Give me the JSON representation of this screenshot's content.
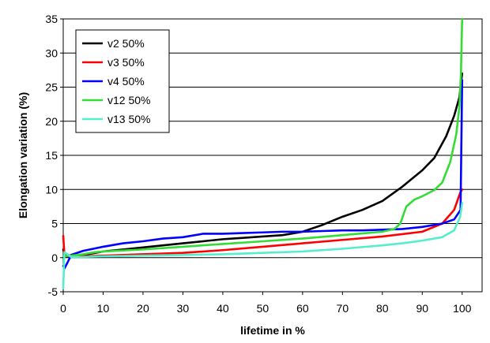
{
  "chart_data": {
    "type": "line",
    "xlabel": "lifetime in %",
    "ylabel": "Elongation variation  (%)",
    "xlim": [
      0,
      105
    ],
    "ylim": [
      -5,
      35
    ],
    "xticks": [
      0,
      10,
      20,
      30,
      40,
      50,
      60,
      70,
      80,
      90,
      100
    ],
    "yticks": [
      -5,
      0,
      5,
      10,
      15,
      20,
      25,
      30,
      35
    ],
    "grid": "horizontal",
    "legend_position": "top-left",
    "series": [
      {
        "name": "v2 50%",
        "color": "#000000",
        "points": [
          [
            0,
            1.2
          ],
          [
            0.4,
            0.2
          ],
          [
            2,
            0.2
          ],
          [
            5,
            0.4
          ],
          [
            10,
            0.9
          ],
          [
            15,
            1.2
          ],
          [
            20,
            1.5
          ],
          [
            25,
            1.8
          ],
          [
            30,
            2.1
          ],
          [
            35,
            2.4
          ],
          [
            40,
            2.7
          ],
          [
            45,
            2.9
          ],
          [
            50,
            3.1
          ],
          [
            55,
            3.3
          ],
          [
            60,
            3.8
          ],
          [
            65,
            4.8
          ],
          [
            70,
            6.0
          ],
          [
            75,
            7.0
          ],
          [
            80,
            8.3
          ],
          [
            85,
            10.4
          ],
          [
            90,
            12.8
          ],
          [
            93,
            14.6
          ],
          [
            96,
            17.8
          ],
          [
            98,
            20.8
          ],
          [
            99.3,
            23.5
          ],
          [
            99.8,
            26
          ],
          [
            100,
            27
          ]
        ]
      },
      {
        "name": "v3 50%",
        "color": "#ff0000",
        "points": [
          [
            0,
            3.2
          ],
          [
            0.3,
            0.5
          ],
          [
            2,
            0.3
          ],
          [
            5,
            0.2
          ],
          [
            10,
            0.3
          ],
          [
            20,
            0.5
          ],
          [
            30,
            0.7
          ],
          [
            40,
            1.1
          ],
          [
            50,
            1.6
          ],
          [
            60,
            2.1
          ],
          [
            70,
            2.6
          ],
          [
            80,
            3.1
          ],
          [
            90,
            3.8
          ],
          [
            95,
            5.0
          ],
          [
            98,
            7.0
          ],
          [
            99.5,
            9.5
          ],
          [
            100,
            10
          ]
        ]
      },
      {
        "name": "v4 50%",
        "color": "#0000ff",
        "points": [
          [
            0,
            -1.2
          ],
          [
            0.3,
            -1.6
          ],
          [
            1,
            -0.8
          ],
          [
            2,
            0.4
          ],
          [
            5,
            1.0
          ],
          [
            10,
            1.6
          ],
          [
            15,
            2.1
          ],
          [
            20,
            2.4
          ],
          [
            25,
            2.8
          ],
          [
            30,
            3.0
          ],
          [
            35,
            3.5
          ],
          [
            40,
            3.5
          ],
          [
            45,
            3.6
          ],
          [
            50,
            3.7
          ],
          [
            55,
            3.8
          ],
          [
            60,
            3.8
          ],
          [
            65,
            3.9
          ],
          [
            70,
            4.0
          ],
          [
            75,
            4.0
          ],
          [
            80,
            4.1
          ],
          [
            85,
            4.2
          ],
          [
            90,
            4.5
          ],
          [
            95,
            5.0
          ],
          [
            98,
            5.6
          ],
          [
            99.6,
            7
          ],
          [
            100,
            26
          ]
        ]
      },
      {
        "name": "v12 50%",
        "color": "#33dd33",
        "points": [
          [
            0,
            0.2
          ],
          [
            2,
            0.3
          ],
          [
            5,
            0.5
          ],
          [
            8,
            0.8
          ],
          [
            10,
            0.9
          ],
          [
            20,
            1.2
          ],
          [
            30,
            1.6
          ],
          [
            40,
            2.0
          ],
          [
            50,
            2.4
          ],
          [
            60,
            2.8
          ],
          [
            70,
            3.3
          ],
          [
            80,
            3.8
          ],
          [
            83,
            4.2
          ],
          [
            84.5,
            5.0
          ],
          [
            86,
            7.5
          ],
          [
            88,
            8.5
          ],
          [
            90,
            9.0
          ],
          [
            93,
            9.9
          ],
          [
            95,
            11.0
          ],
          [
            97,
            14.0
          ],
          [
            98.5,
            18.0
          ],
          [
            99.3,
            22
          ],
          [
            99.7,
            27
          ],
          [
            100,
            35
          ]
        ]
      },
      {
        "name": "v13 50%",
        "color": "#55eecc",
        "points": [
          [
            0,
            -4.5
          ],
          [
            0.3,
            0.8
          ],
          [
            2,
            0.1
          ],
          [
            5,
            0.1
          ],
          [
            10,
            0.2
          ],
          [
            20,
            0.3
          ],
          [
            30,
            0.4
          ],
          [
            40,
            0.5
          ],
          [
            50,
            0.7
          ],
          [
            60,
            0.9
          ],
          [
            70,
            1.3
          ],
          [
            80,
            1.8
          ],
          [
            85,
            2.1
          ],
          [
            90,
            2.5
          ],
          [
            95,
            3.0
          ],
          [
            98,
            4.0
          ],
          [
            99.5,
            6
          ],
          [
            100,
            8
          ]
        ]
      }
    ]
  }
}
